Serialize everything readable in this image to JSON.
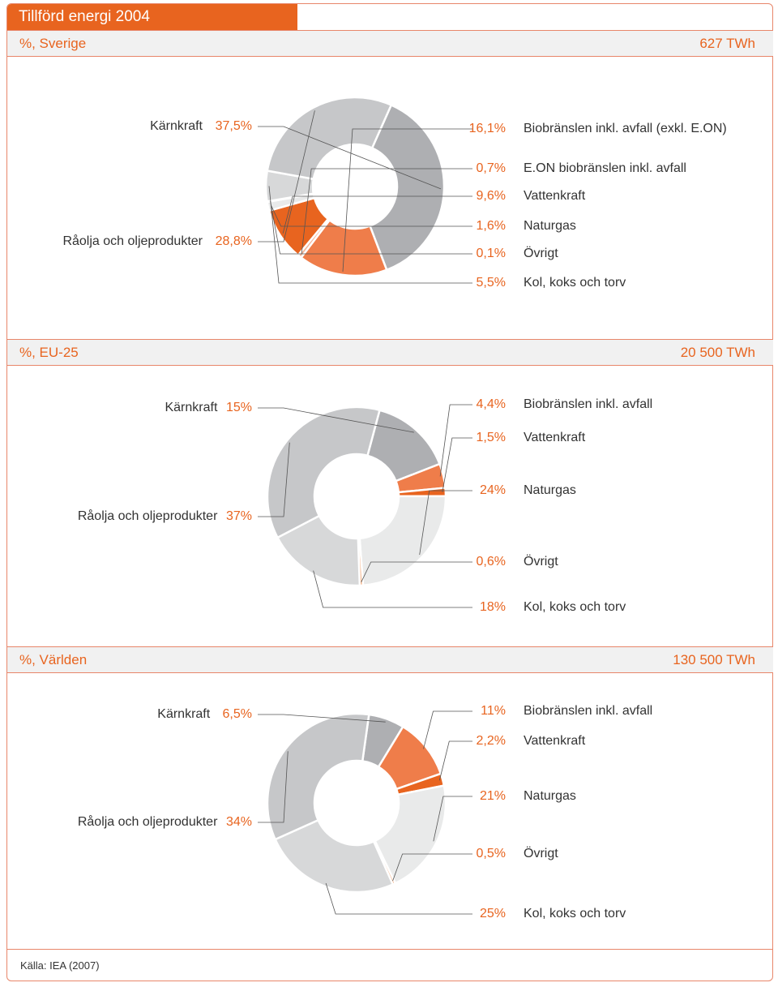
{
  "title": "Tillförd energi 2004",
  "source": "Källa: IEA (2007)",
  "colors": {
    "accent": "#e8641f",
    "border": "#e8866a",
    "Kärnkraft": "#aeafb2",
    "Biobränslen": "#ef7d4a",
    "E.ON biobränslen": "#f4b79b",
    "Vattenkraft": "#e8641f",
    "Naturgas": "#e9eaea",
    "Övrigt": "#f5b890",
    "Kol": "#d7d8d9",
    "Råolja": "#c6c7c9"
  },
  "chart_data": [
    {
      "type": "pie",
      "subtitle": "%, Sverige",
      "total": "627 TWh",
      "slices": [
        {
          "label": "Kärnkraft",
          "value_label": "37,5%",
          "value": 37.5
        },
        {
          "label": "Biobränslen inkl. avfall (exkl. E.ON)",
          "value_label": "16,1%",
          "value": 16.1
        },
        {
          "label": "E.ON biobränslen inkl. avfall",
          "value_label": "0,7%",
          "value": 0.7
        },
        {
          "label": "Vattenkraft",
          "value_label": "9,6%",
          "value": 9.6
        },
        {
          "label": "Naturgas",
          "value_label": "1,6%",
          "value": 1.6
        },
        {
          "label": "Övrigt",
          "value_label": "0,1%",
          "value": 0.1
        },
        {
          "label": "Kol, koks och torv",
          "value_label": "5,5%",
          "value": 5.5
        },
        {
          "label": "Råolja och oljeprodukter",
          "value_label": "28,8%",
          "value": 28.8
        }
      ]
    },
    {
      "type": "pie",
      "subtitle": "%, EU-25",
      "total": "20 500 TWh",
      "slices": [
        {
          "label": "Kärnkraft",
          "value_label": "15%",
          "value": 15
        },
        {
          "label": "Biobränslen inkl. avfall",
          "value_label": "4,4%",
          "value": 4.4
        },
        {
          "label": "Vattenkraft",
          "value_label": "1,5%",
          "value": 1.5
        },
        {
          "label": "Naturgas",
          "value_label": "24%",
          "value": 24
        },
        {
          "label": "Övrigt",
          "value_label": "0,6%",
          "value": 0.6
        },
        {
          "label": "Kol, koks och torv",
          "value_label": "18%",
          "value": 18
        },
        {
          "label": "Råolja och oljeprodukter",
          "value_label": "37%",
          "value": 37
        }
      ]
    },
    {
      "type": "pie",
      "subtitle": "%, Världen",
      "total": "130 500 TWh",
      "slices": [
        {
          "label": "Kärnkraft",
          "value_label": "6,5%",
          "value": 6.5
        },
        {
          "label": "Biobränslen inkl. avfall",
          "value_label": "11%",
          "value": 11
        },
        {
          "label": "Vattenkraft",
          "value_label": "2,2%",
          "value": 2.2
        },
        {
          "label": "Naturgas",
          "value_label": "21%",
          "value": 21
        },
        {
          "label": "Övrigt",
          "value_label": "0,5%",
          "value": 0.5
        },
        {
          "label": "Kol, koks och torv",
          "value_label": "25%",
          "value": 25
        },
        {
          "label": "Råolja och oljeprodukter",
          "value_label": "34%",
          "value": 34
        }
      ]
    }
  ]
}
